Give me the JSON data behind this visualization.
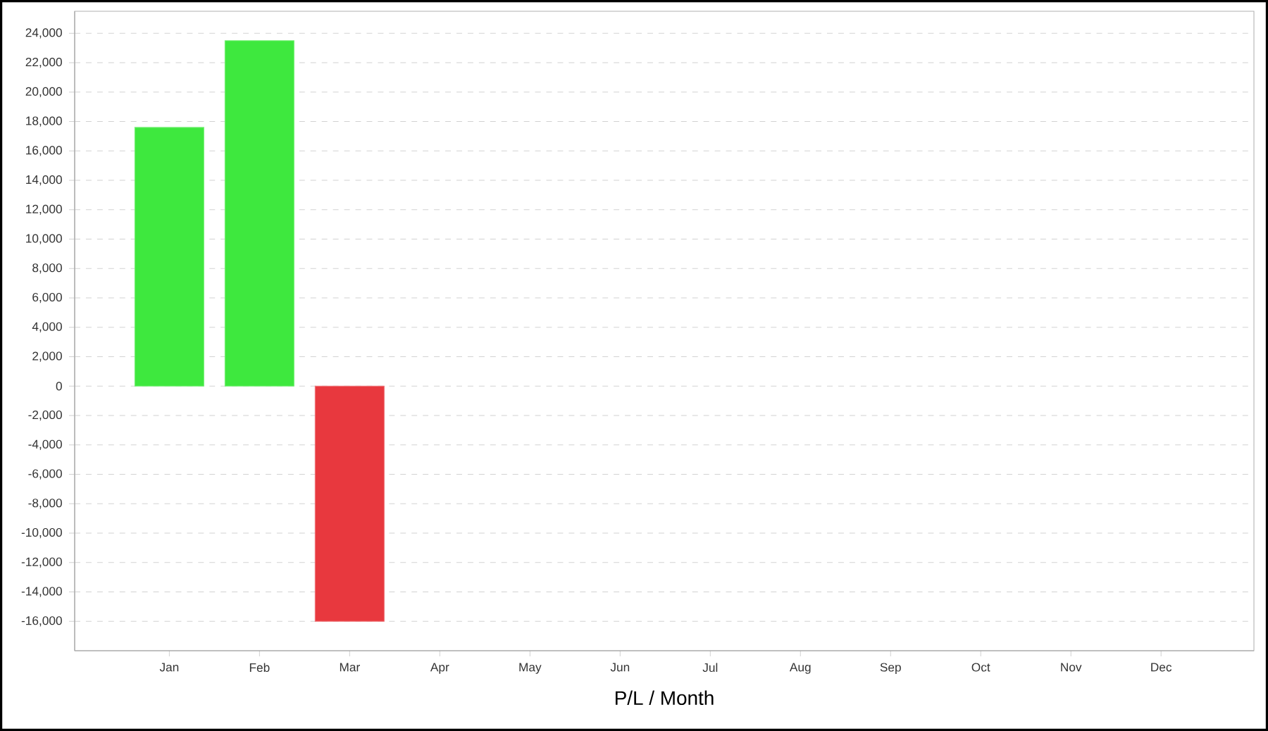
{
  "chart_data": {
    "type": "bar",
    "xlabel": "P/L / Month",
    "categories": [
      "Jan",
      "Feb",
      "Mar",
      "Apr",
      "May",
      "Jun",
      "Jul",
      "Aug",
      "Sep",
      "Oct",
      "Nov",
      "Dec"
    ],
    "values": [
      17600,
      23500,
      -16000,
      null,
      null,
      null,
      null,
      null,
      null,
      null,
      null,
      null
    ],
    "colors": [
      "#3ee83e",
      "#3ee83e",
      "#e8383e",
      "#3ee83e",
      "#3ee83e",
      "#3ee83e",
      "#3ee83e",
      "#3ee83e",
      "#3ee83e",
      "#3ee83e",
      "#3ee83e",
      "#3ee83e"
    ],
    "ylim": [
      -18000,
      25500
    ],
    "yticks": [
      {
        "value": -16000,
        "label": "-16,000"
      },
      {
        "value": -14000,
        "label": "-14,000"
      },
      {
        "value": -12000,
        "label": "-12,000"
      },
      {
        "value": -10000,
        "label": "-10,000"
      },
      {
        "value": -8000,
        "label": "-8,000"
      },
      {
        "value": -6000,
        "label": "-6,000"
      },
      {
        "value": -4000,
        "label": "-4,000"
      },
      {
        "value": -2000,
        "label": "-2,000"
      },
      0,
      {
        "value": 2000,
        "label": "2,000"
      },
      {
        "value": 4000,
        "label": "4,000"
      },
      {
        "value": 6000,
        "label": "6,000"
      },
      {
        "value": 8000,
        "label": "8,000"
      },
      {
        "value": 10000,
        "label": "10,000"
      },
      {
        "value": 12000,
        "label": "12,000"
      },
      {
        "value": 14000,
        "label": "14,000"
      },
      {
        "value": 16000,
        "label": "16,000"
      },
      {
        "value": 18000,
        "label": "18,000"
      },
      {
        "value": 20000,
        "label": "20,000"
      },
      {
        "value": 22000,
        "label": "22,000"
      },
      {
        "value": 24000,
        "label": "24,000"
      }
    ],
    "grid": "y"
  }
}
